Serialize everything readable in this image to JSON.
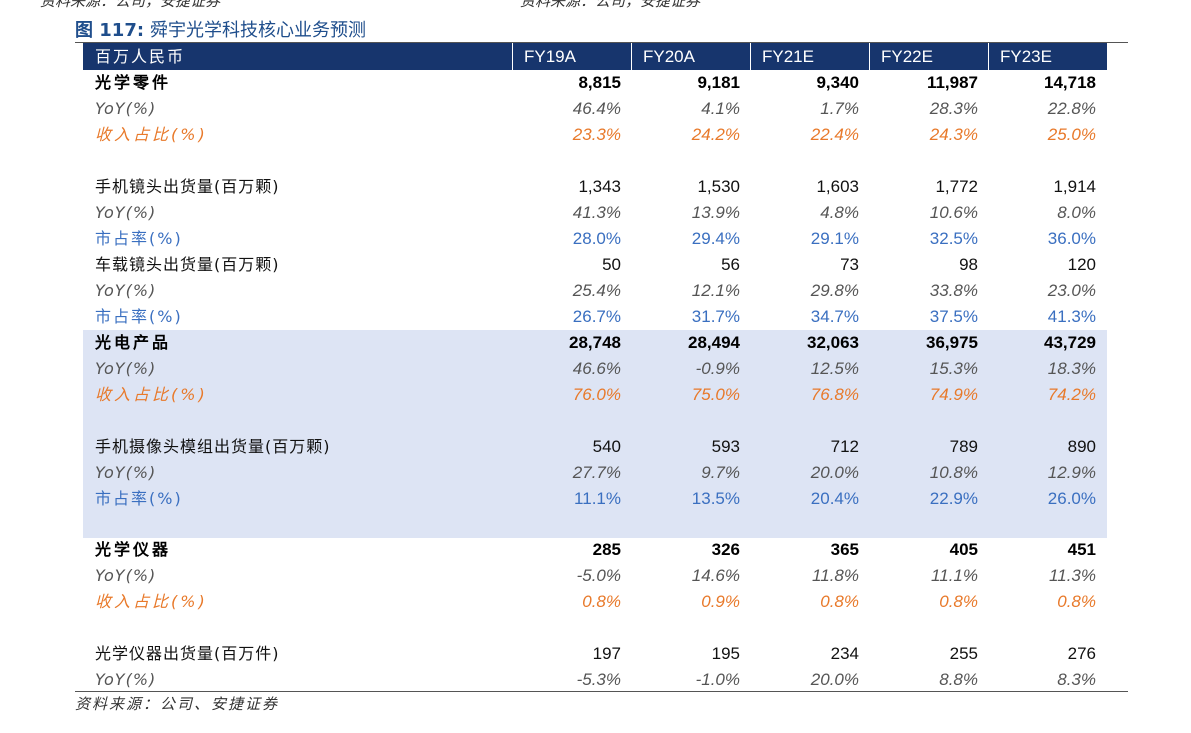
{
  "cut_header": [
    "资料来源：公司，安捷证券",
    "资料来源：公司，安捷证券"
  ],
  "figure": {
    "number": "图 117:",
    "title": "舜宇光学科技核心业务预测"
  },
  "table": {
    "unit_label": "百万人民币",
    "columns": [
      "FY19A",
      "FY20A",
      "FY21E",
      "FY22E",
      "FY23E"
    ],
    "rows": [
      {
        "label": "光学零件",
        "style": "major",
        "values": [
          "8,815",
          "9,181",
          "9,340",
          "11,987",
          "14,718"
        ]
      },
      {
        "label": "YoY(%)",
        "style": "yoy",
        "values": [
          "46.4%",
          "4.1%",
          "1.7%",
          "28.3%",
          "22.8%"
        ]
      },
      {
        "label": "收入占比(%)",
        "style": "share",
        "values": [
          "23.3%",
          "24.2%",
          "22.4%",
          "24.3%",
          "25.0%"
        ]
      },
      {
        "label": "手机镜头出货量(百万颗)",
        "style": "normal",
        "values": [
          "1,343",
          "1,530",
          "1,603",
          "1,772",
          "1,914"
        ]
      },
      {
        "label": "YoY(%)",
        "style": "yoy",
        "values": [
          "41.3%",
          "13.9%",
          "4.8%",
          "10.6%",
          "8.0%"
        ]
      },
      {
        "label": "市占率(%)",
        "style": "mkt",
        "values": [
          "28.0%",
          "29.4%",
          "29.1%",
          "32.5%",
          "36.0%"
        ]
      },
      {
        "label": "车载镜头出货量(百万颗)",
        "style": "normal",
        "values": [
          "50",
          "56",
          "73",
          "98",
          "120"
        ]
      },
      {
        "label": "YoY(%)",
        "style": "yoy",
        "values": [
          "25.4%",
          "12.1%",
          "29.8%",
          "33.8%",
          "23.0%"
        ]
      },
      {
        "label": "市占率(%)",
        "style": "mkt",
        "values": [
          "26.7%",
          "31.7%",
          "34.7%",
          "37.5%",
          "41.3%"
        ]
      },
      {
        "label": "光电产品",
        "style": "major",
        "values": [
          "28,748",
          "28,494",
          "32,063",
          "36,975",
          "43,729"
        ]
      },
      {
        "label": "YoY(%)",
        "style": "yoy",
        "values": [
          "46.6%",
          "-0.9%",
          "12.5%",
          "15.3%",
          "18.3%"
        ]
      },
      {
        "label": "收入占比(%)",
        "style": "share",
        "values": [
          "76.0%",
          "75.0%",
          "76.8%",
          "74.9%",
          "74.2%"
        ]
      },
      {
        "label": "手机摄像头模组出货量(百万颗)",
        "style": "normal",
        "values": [
          "540",
          "593",
          "712",
          "789",
          "890"
        ]
      },
      {
        "label": "YoY(%)",
        "style": "yoy",
        "values": [
          "27.7%",
          "9.7%",
          "20.0%",
          "10.8%",
          "12.9%"
        ]
      },
      {
        "label": "市占率(%)",
        "style": "mkt",
        "values": [
          "11.1%",
          "13.5%",
          "20.4%",
          "22.9%",
          "26.0%"
        ]
      },
      {
        "label": "光学仪器",
        "style": "major",
        "values": [
          "285",
          "326",
          "365",
          "405",
          "451"
        ]
      },
      {
        "label": "YoY(%)",
        "style": "yoy",
        "values": [
          "-5.0%",
          "14.6%",
          "11.8%",
          "11.1%",
          "11.3%"
        ]
      },
      {
        "label": "收入占比(%)",
        "style": "share",
        "values": [
          "0.8%",
          "0.9%",
          "0.8%",
          "0.8%",
          "0.8%"
        ]
      },
      {
        "label": "光学仪器出货量(百万件)",
        "style": "normal",
        "values": [
          "197",
          "195",
          "234",
          "255",
          "276"
        ]
      },
      {
        "label": "YoY(%)",
        "style": "yoy",
        "values": [
          "-5.3%",
          "-1.0%",
          "20.0%",
          "8.8%",
          "8.3%"
        ]
      }
    ]
  },
  "source": "资料来源：公司、安捷证券"
}
